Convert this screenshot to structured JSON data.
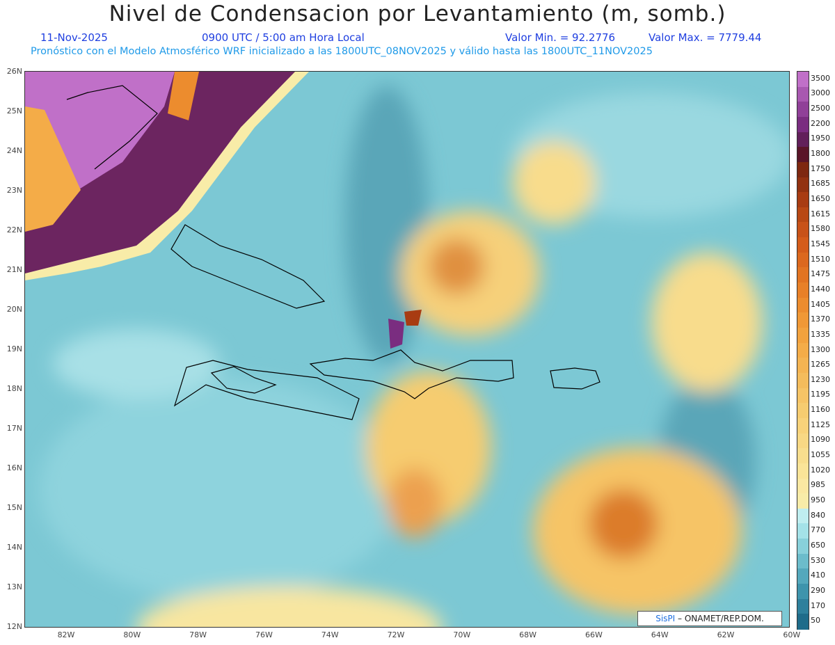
{
  "header": {
    "title": "Nivel de Condensacion por Levantamiento (m, somb.)",
    "date": "11-Nov-2025",
    "time": "0900 UTC / 5:00 am Hora Local",
    "valmin": "Valor Min. = 92.2776",
    "valmax": "Valor Max. = 7779.44",
    "forecast": "Pronóstico con el Modelo Atmosférico WRF inicializado a las 1800UTC_08NOV2025 y válido hasta las  1800UTC_11NOV2025"
  },
  "axes": {
    "lat_labels": [
      "26N",
      "25N",
      "24N",
      "23N",
      "22N",
      "21N",
      "20N",
      "19N",
      "18N",
      "17N",
      "16N",
      "15N",
      "14N",
      "13N",
      "12N"
    ],
    "lon_labels": [
      "82W",
      "80W",
      "78W",
      "76W",
      "74W",
      "72W",
      "70W",
      "68W",
      "66W",
      "64W",
      "62W",
      "60W"
    ]
  },
  "colorbar": {
    "labels": [
      "3500",
      "3000",
      "2500",
      "2200",
      "1950",
      "1800",
      "1750",
      "1685",
      "1650",
      "1615",
      "1580",
      "1545",
      "1510",
      "1475",
      "1440",
      "1405",
      "1370",
      "1335",
      "1300",
      "1265",
      "1230",
      "1195",
      "1160",
      "1125",
      "1090",
      "1055",
      "1020",
      "985",
      "950",
      "840",
      "770",
      "650",
      "530",
      "410",
      "290",
      "170",
      "50"
    ],
    "colors": [
      "#c070c8",
      "#a858b0",
      "#904098",
      "#7a2d80",
      "#62205a",
      "#5a1528",
      "#7e2810",
      "#923210",
      "#a83c12",
      "#b84814",
      "#c85218",
      "#d45c1a",
      "#dc681e",
      "#e27422",
      "#e88028",
      "#ec8c2e",
      "#f09836",
      "#f2a23e",
      "#f4ac48",
      "#f4b452",
      "#f4bc5c",
      "#f6c466",
      "#f6cc70",
      "#f8d27a",
      "#f8d884",
      "#f8de8e",
      "#fae498",
      "#fae8a2",
      "#f8eca8",
      "#bfeef0",
      "#a4e2e8",
      "#88d0da",
      "#6cbccb",
      "#54a8bc",
      "#3e94ac",
      "#2e809c",
      "#1f6c8a"
    ]
  },
  "credit": {
    "brand": "SisPI",
    "org": "ONAMET/REP.DOM."
  }
}
